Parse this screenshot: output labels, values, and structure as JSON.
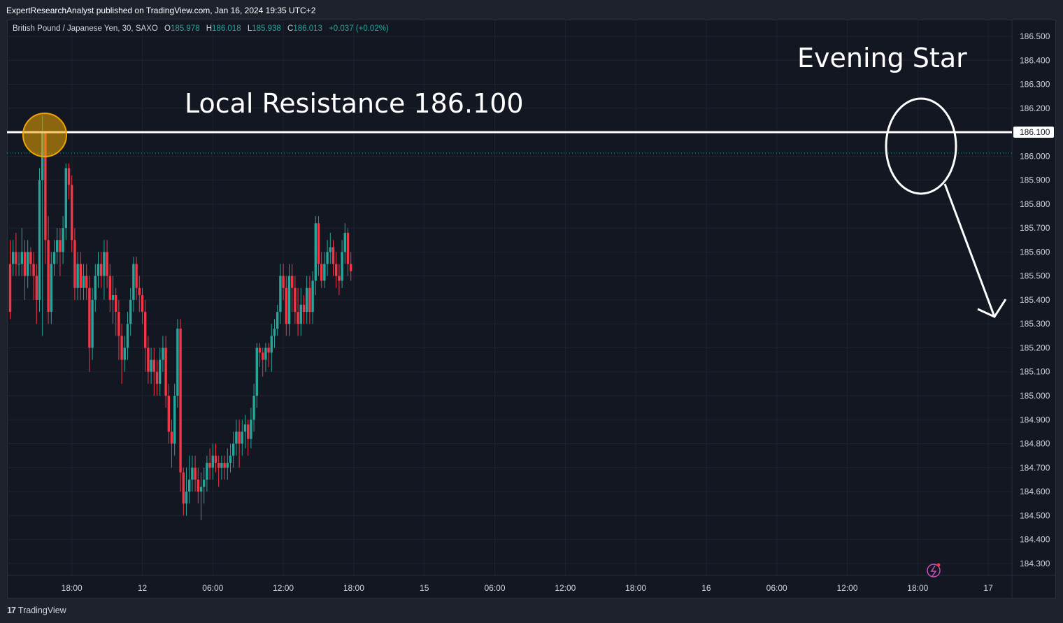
{
  "publisher_line": "ExpertResearchAnalyst published on TradingView.com, Jan 16, 2024 19:35 UTC+2",
  "legend": {
    "symbol": "British Pound / Japanese Yen, 30, SAXO",
    "open_label": "O",
    "open": "185.978",
    "high_label": "H",
    "high": "186.018",
    "low_label": "L",
    "low": "185.938",
    "close_label": "C",
    "close": "186.013",
    "change": "+0.037 (+0.02%)"
  },
  "footer": {
    "logo_text": "TradingView",
    "logo_mark": "17"
  },
  "colors": {
    "background": "#131722",
    "up": "#26a69a",
    "down": "#f23645",
    "text": "#d1d4dc",
    "resistance_line": "#ffffff",
    "highlight_circle": "#f0a500",
    "current_price_line": "#26a69a"
  },
  "chart_data": {
    "type": "candlestick",
    "title": "",
    "ylim": [
      184.25,
      186.57
    ],
    "y_ticks": [
      "186.500",
      "186.400",
      "186.300",
      "186.200",
      "186.100",
      "186.000",
      "185.900",
      "185.800",
      "185.700",
      "185.600",
      "185.500",
      "185.400",
      "185.300",
      "185.200",
      "185.100",
      "185.000",
      "184.900",
      "184.800",
      "184.700",
      "184.600",
      "184.500",
      "184.400",
      "184.300"
    ],
    "x_ticks": [
      {
        "label": "18:00",
        "bar": 21
      },
      {
        "label": "12",
        "bar": 45
      },
      {
        "label": "06:00",
        "bar": 69
      },
      {
        "label": "12:00",
        "bar": 93
      },
      {
        "label": "18:00",
        "bar": 117
      },
      {
        "label": "15",
        "bar": 141
      },
      {
        "label": "06:00",
        "bar": 165
      },
      {
        "label": "12:00",
        "bar": 189
      },
      {
        "label": "18:00",
        "bar": 213
      },
      {
        "label": "16",
        "bar": 237
      },
      {
        "label": "06:00",
        "bar": 261
      },
      {
        "label": "12:00",
        "bar": 285
      },
      {
        "label": "18:00",
        "bar": 309
      },
      {
        "label": "17",
        "bar": 333
      }
    ],
    "resistance": {
      "value": 186.1,
      "label": "Local Resistance 186.100",
      "tag": "186.100"
    },
    "annotation": {
      "label": "Evening Star"
    },
    "current_price": 186.013,
    "candles": [
      [
        185.55,
        185.35,
        185.65,
        185.32
      ],
      [
        185.55,
        185.6,
        185.65,
        185.5
      ],
      [
        185.6,
        185.55,
        185.68,
        185.5
      ],
      [
        185.55,
        185.55,
        185.6,
        185.5
      ],
      [
        185.55,
        185.6,
        185.7,
        185.5
      ],
      [
        185.6,
        185.5,
        185.65,
        185.4
      ],
      [
        185.5,
        185.6,
        185.65,
        185.45
      ],
      [
        185.6,
        185.55,
        185.62,
        185.5
      ],
      [
        185.55,
        185.5,
        185.6,
        185.4
      ],
      [
        185.5,
        185.4,
        185.55,
        185.3
      ],
      [
        185.4,
        185.9,
        185.95,
        185.35
      ],
      [
        185.9,
        186.1,
        186.17,
        185.25
      ],
      [
        186.1,
        185.65,
        186.1,
        185.55
      ],
      [
        185.65,
        185.35,
        185.75,
        185.3
      ],
      [
        185.35,
        185.55,
        185.6,
        185.3
      ],
      [
        185.55,
        185.6,
        185.65,
        185.5
      ],
      [
        185.6,
        185.65,
        185.7,
        185.55
      ],
      [
        185.65,
        185.6,
        185.7,
        185.5
      ],
      [
        185.6,
        185.7,
        185.75,
        185.55
      ],
      [
        185.7,
        185.95,
        185.97,
        185.65
      ],
      [
        185.95,
        185.88,
        185.97,
        185.82
      ],
      [
        185.88,
        185.65,
        185.92,
        185.6
      ],
      [
        185.65,
        185.45,
        185.7,
        185.4
      ],
      [
        185.45,
        185.55,
        185.6,
        185.4
      ],
      [
        185.55,
        185.45,
        185.6,
        185.4
      ],
      [
        185.45,
        185.5,
        185.55,
        185.4
      ],
      [
        185.5,
        185.45,
        185.55,
        185.4
      ],
      [
        185.45,
        185.2,
        185.5,
        185.1
      ],
      [
        185.2,
        185.4,
        185.45,
        185.15
      ],
      [
        185.4,
        185.5,
        185.55,
        185.35
      ],
      [
        185.5,
        185.55,
        185.6,
        185.45
      ],
      [
        185.55,
        185.5,
        185.6,
        185.45
      ],
      [
        185.5,
        185.6,
        185.65,
        185.4
      ],
      [
        185.6,
        185.5,
        185.65,
        185.45
      ],
      [
        185.5,
        185.4,
        185.55,
        185.35
      ],
      [
        185.4,
        185.42,
        185.5,
        185.3
      ],
      [
        185.42,
        185.35,
        185.45,
        185.25
      ],
      [
        185.35,
        185.25,
        185.4,
        185.15
      ],
      [
        185.25,
        185.15,
        185.3,
        185.05
      ],
      [
        185.15,
        185.2,
        185.25,
        185.1
      ],
      [
        185.2,
        185.3,
        185.35,
        185.15
      ],
      [
        185.3,
        185.4,
        185.45,
        185.25
      ],
      [
        185.4,
        185.55,
        185.58,
        185.35
      ],
      [
        185.55,
        185.45,
        185.58,
        185.4
      ],
      [
        185.45,
        185.42,
        185.5,
        185.35
      ],
      [
        185.42,
        185.35,
        185.45,
        185.3
      ],
      [
        185.35,
        185.2,
        185.4,
        185.1
      ],
      [
        185.2,
        185.1,
        185.25,
        185.05
      ],
      [
        185.1,
        185.15,
        185.2,
        185.05
      ],
      [
        185.15,
        185.1,
        185.2,
        185.0
      ],
      [
        185.1,
        185.05,
        185.15,
        185.0
      ],
      [
        185.05,
        185.15,
        185.2,
        185.0
      ],
      [
        185.15,
        185.2,
        185.25,
        185.1
      ],
      [
        185.2,
        185.0,
        185.25,
        184.95
      ],
      [
        185.0,
        184.85,
        185.05,
        184.8
      ],
      [
        184.85,
        184.8,
        184.9,
        184.7
      ],
      [
        184.8,
        185.0,
        185.05,
        184.75
      ],
      [
        185.0,
        185.28,
        185.32,
        184.95
      ],
      [
        185.28,
        184.68,
        185.32,
        184.6
      ],
      [
        184.68,
        184.55,
        184.7,
        184.5
      ],
      [
        184.55,
        184.6,
        184.7,
        184.5
      ],
      [
        184.6,
        184.65,
        184.75,
        184.55
      ],
      [
        184.65,
        184.7,
        184.75,
        184.6
      ],
      [
        184.7,
        184.65,
        184.75,
        184.6
      ],
      [
        184.65,
        184.6,
        184.7,
        184.55
      ],
      [
        184.6,
        184.62,
        184.68,
        184.48
      ],
      [
        184.62,
        184.65,
        184.7,
        184.55
      ],
      [
        184.65,
        184.72,
        184.75,
        184.6
      ],
      [
        184.72,
        184.7,
        184.78,
        184.65
      ],
      [
        184.7,
        184.75,
        184.8,
        184.65
      ],
      [
        184.75,
        184.72,
        184.8,
        184.68
      ],
      [
        184.72,
        184.7,
        184.75,
        184.62
      ],
      [
        184.7,
        184.72,
        184.75,
        184.65
      ],
      [
        184.72,
        184.7,
        184.75,
        184.65
      ],
      [
        184.7,
        184.72,
        184.78,
        184.65
      ],
      [
        184.72,
        184.75,
        184.8,
        184.68
      ],
      [
        184.75,
        184.8,
        184.85,
        184.7
      ],
      [
        184.8,
        184.85,
        184.9,
        184.75
      ],
      [
        184.85,
        184.8,
        184.9,
        184.7
      ],
      [
        184.8,
        184.85,
        184.9,
        184.75
      ],
      [
        184.85,
        184.88,
        184.92,
        184.78
      ],
      [
        184.88,
        184.82,
        184.9,
        184.75
      ],
      [
        184.82,
        184.9,
        184.95,
        184.78
      ],
      [
        184.9,
        185.0,
        185.05,
        184.85
      ],
      [
        185.0,
        185.2,
        185.22,
        184.95
      ],
      [
        185.2,
        185.18,
        185.22,
        185.12
      ],
      [
        185.18,
        185.15,
        185.2,
        185.08
      ],
      [
        185.15,
        185.2,
        185.22,
        185.1
      ],
      [
        185.2,
        185.18,
        185.22,
        185.12
      ],
      [
        185.18,
        185.25,
        185.3,
        185.1
      ],
      [
        185.25,
        185.28,
        185.32,
        185.2
      ],
      [
        185.28,
        185.35,
        185.38,
        185.25
      ],
      [
        185.35,
        185.5,
        185.55,
        185.3
      ],
      [
        185.5,
        185.45,
        185.55,
        185.4
      ],
      [
        185.45,
        185.3,
        185.5,
        185.25
      ],
      [
        185.3,
        185.5,
        185.55,
        185.25
      ],
      [
        185.5,
        185.45,
        185.55,
        185.35
      ],
      [
        185.45,
        185.35,
        185.5,
        185.3
      ],
      [
        185.35,
        185.3,
        185.45,
        185.25
      ],
      [
        185.3,
        185.38,
        185.45,
        185.25
      ],
      [
        185.38,
        185.35,
        185.42,
        185.3
      ],
      [
        185.35,
        185.45,
        185.5,
        185.3
      ],
      [
        185.45,
        185.35,
        185.5,
        185.3
      ],
      [
        185.35,
        185.48,
        185.52,
        185.3
      ],
      [
        185.48,
        185.72,
        185.75,
        185.42
      ],
      [
        185.72,
        185.55,
        185.75,
        185.5
      ],
      [
        185.55,
        185.48,
        185.6,
        185.45
      ],
      [
        185.48,
        185.55,
        185.6,
        185.45
      ],
      [
        185.55,
        185.6,
        185.65,
        185.5
      ],
      [
        185.6,
        185.62,
        185.68,
        185.55
      ],
      [
        185.62,
        185.55,
        185.65,
        185.5
      ],
      [
        185.55,
        185.5,
        185.6,
        185.45
      ],
      [
        185.5,
        185.48,
        185.55,
        185.42
      ],
      [
        185.48,
        185.6,
        185.65,
        185.45
      ],
      [
        185.6,
        185.68,
        185.72,
        185.55
      ],
      [
        185.68,
        185.55,
        185.7,
        185.5
      ],
      [
        185.55,
        185.52,
        185.6,
        185.48
      ]
    ]
  }
}
